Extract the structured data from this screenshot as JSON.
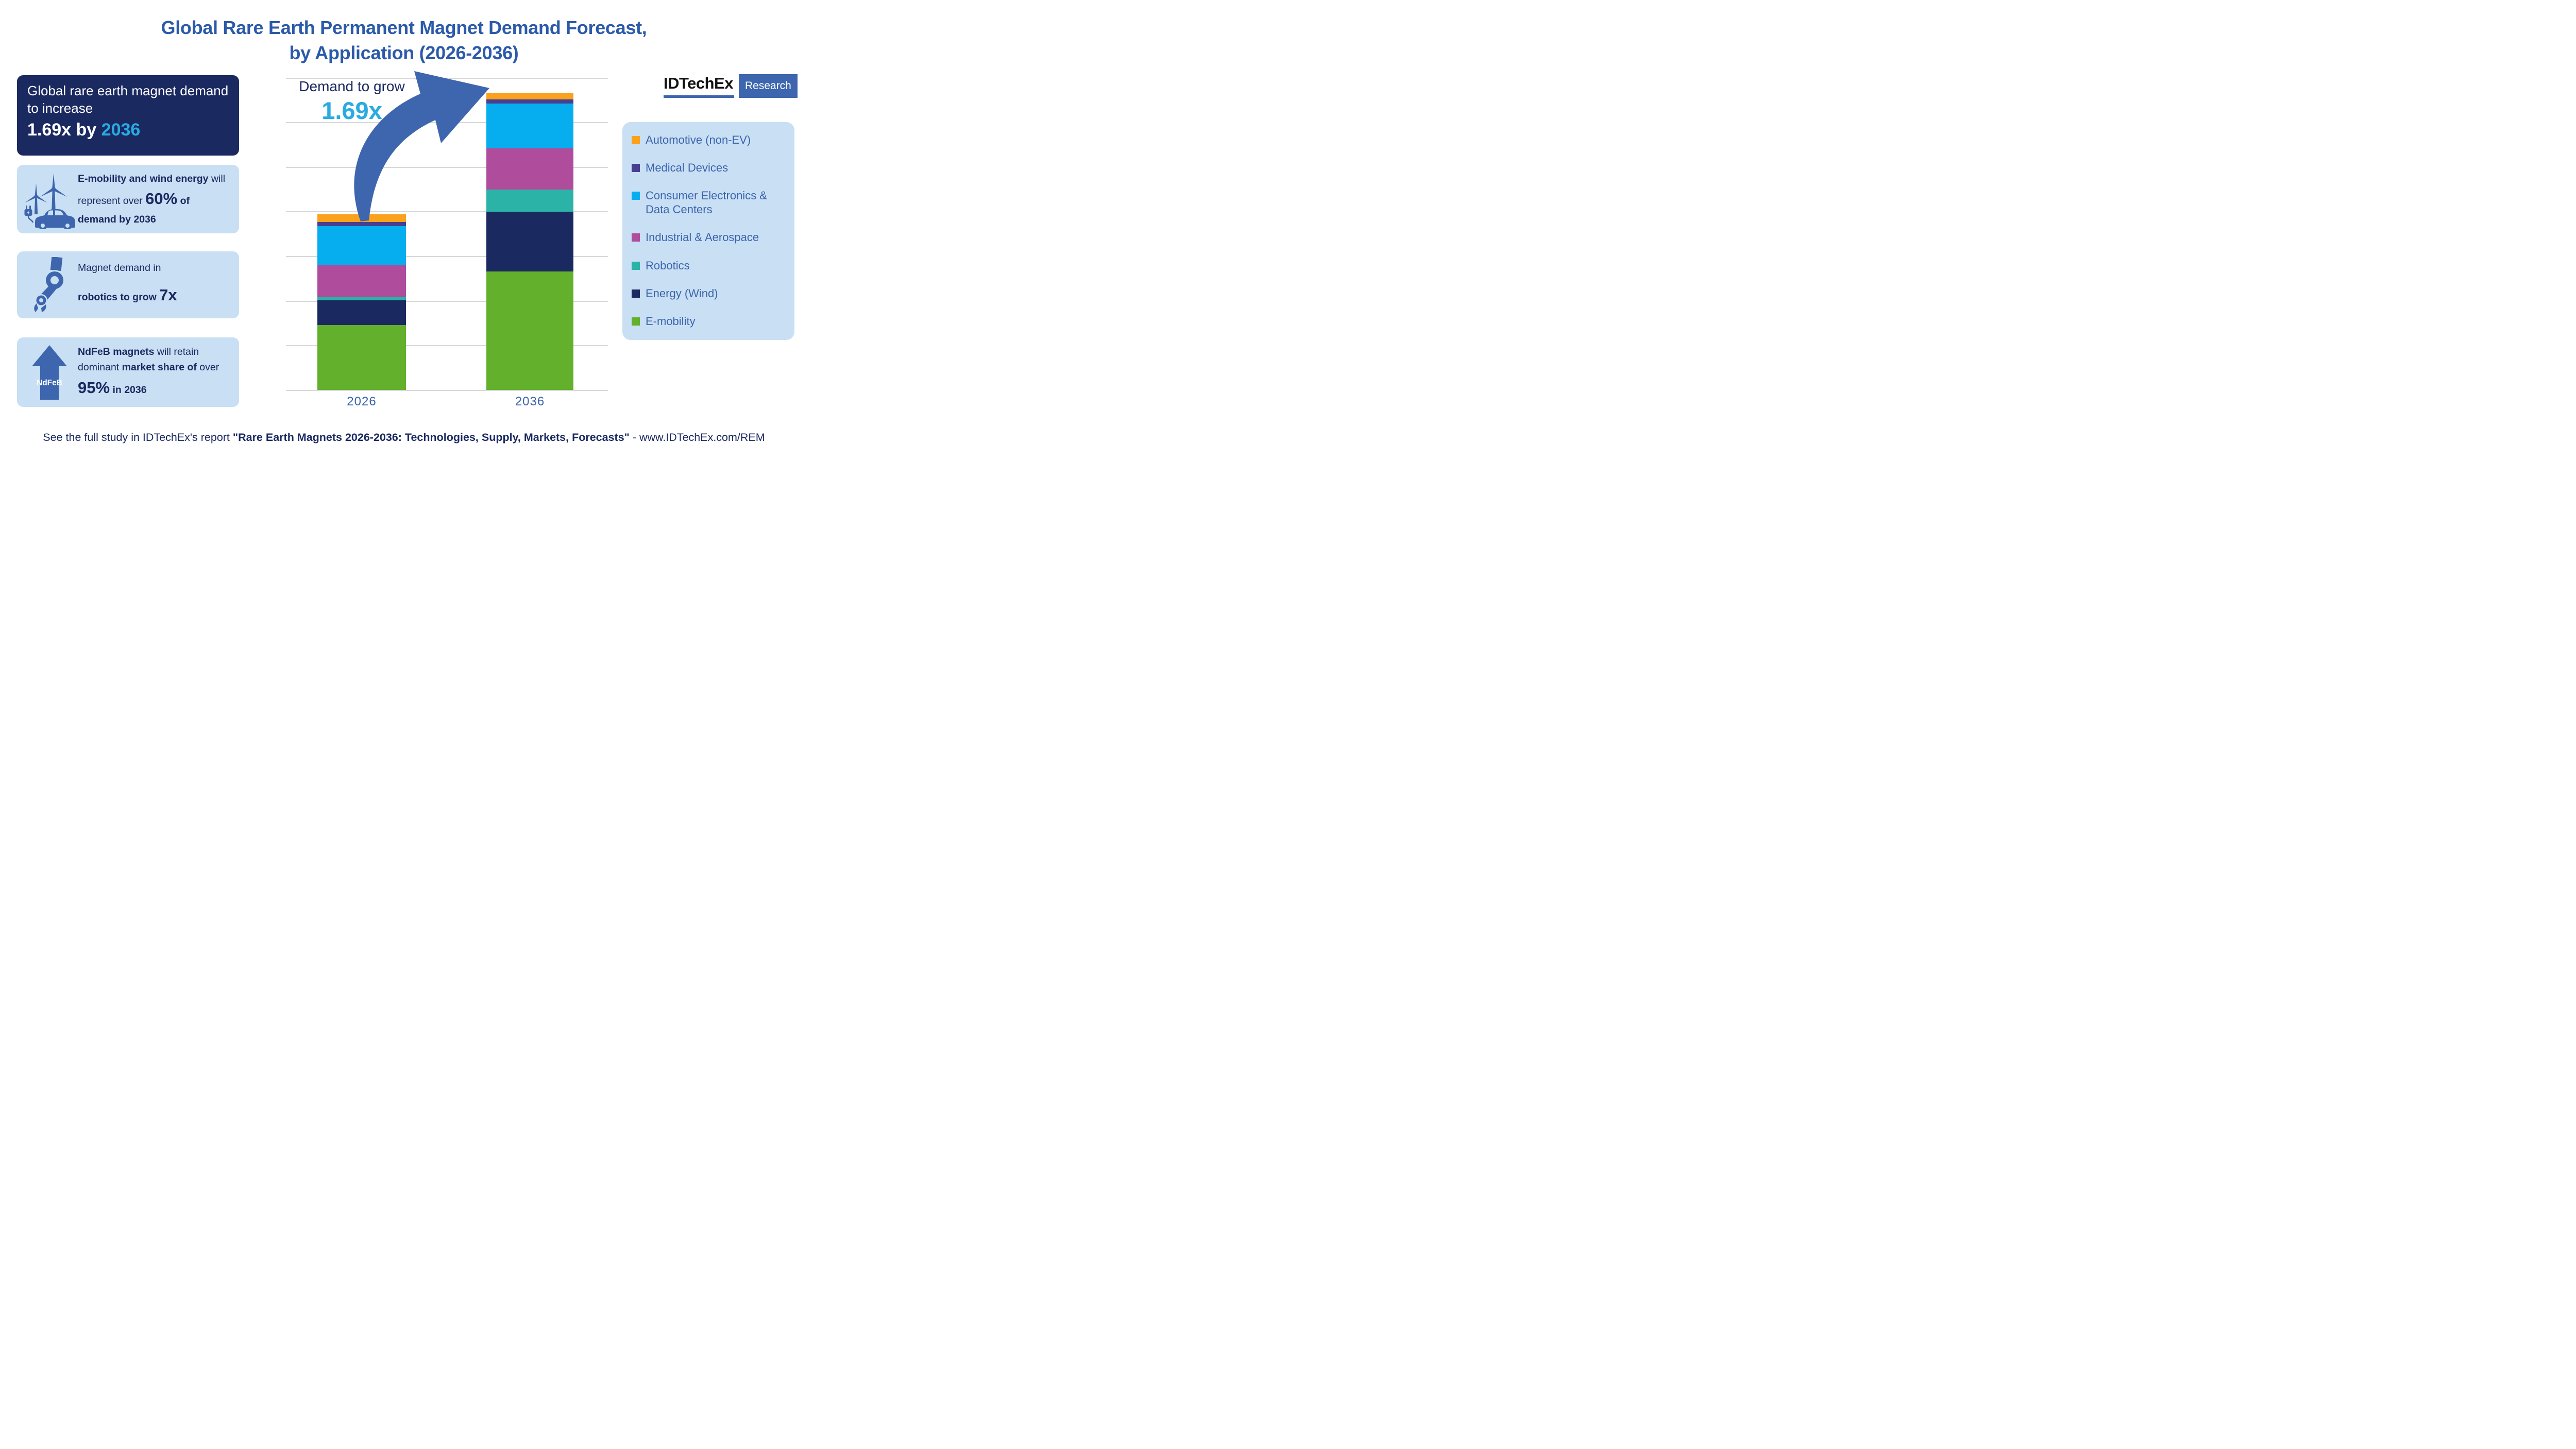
{
  "palette": {
    "title_blue": "#2B5AA9",
    "medium_blue": "#3D66AE",
    "navy": "#1B2961",
    "cyan_accent": "#29ABE2",
    "light_blue_bg": "#C9DFF3",
    "grid_line": "#D8D8D8",
    "legend_text": "#3A64AE",
    "logo_black": "#131313"
  },
  "title": {
    "line1": "Global Rare Earth Permanent Magnet Demand Forecast,",
    "line2": "by Application (2026-2036)"
  },
  "logo": {
    "name": "IDTechEx",
    "tag": "Research"
  },
  "boxes": {
    "headline": {
      "text": "Global rare earth magnet demand to increase",
      "big_white": "1.69x by ",
      "big_cyan": "2036"
    },
    "emobility": {
      "bold1": "E-mobility and wind energy",
      "reg1": " will represent over ",
      "big": "60%",
      "bold2": " of demand by 2036"
    },
    "robotics": {
      "reg": "Magnet demand in",
      "bold": "robotics to grow ",
      "big": "7x"
    },
    "ndfeb": {
      "bold1": "NdFeB magnets",
      "reg1": " will retain dominant ",
      "bold2": "market share of",
      "reg2": " over ",
      "big": "95%",
      "bold3": " in 2036",
      "icon_label": "NdFeB"
    }
  },
  "chart_data": {
    "type": "bar",
    "stacked": true,
    "categories": [
      "2026",
      "2036"
    ],
    "value_units": "relative demand (2026 total = 100)",
    "totals": [
      100,
      169
    ],
    "series": [
      {
        "name": "E-mobility",
        "color": "#63B02C",
        "values": [
          37.1,
          67.5
        ]
      },
      {
        "name": "Energy (Wind)",
        "color": "#1B2961",
        "values": [
          14,
          34
        ]
      },
      {
        "name": "Robotics",
        "color": "#2AB3A6",
        "values": [
          1.8,
          12.5
        ]
      },
      {
        "name": "Industrial & Aerospace",
        "color": "#AF4C9B",
        "values": [
          18,
          23.5
        ]
      },
      {
        "name": "Consumer Electronics & Data Centers",
        "color": "#06AEEF",
        "values": [
          22.5,
          25.5
        ]
      },
      {
        "name": "Medical Devices",
        "color": "#493E8F",
        "values": [
          2.2,
          2.5
        ]
      },
      {
        "name": "Automotive (non-EV)",
        "color": "#FAA21E",
        "values": [
          4.4,
          3.5
        ]
      }
    ],
    "annotation": {
      "label": "Demand to grow",
      "value": "1.69x"
    },
    "xlabel": "",
    "ylabel": "",
    "ylim": [
      0,
      175
    ],
    "grid": true,
    "legend_position": "right"
  },
  "footer": {
    "reg1": "See the full study in IDTechEx's report ",
    "bold": "\"Rare Earth Magnets 2026-2036: Technologies, Supply, Markets, Forecasts\"",
    "reg2": " - www.IDTechEx.com/REM"
  }
}
